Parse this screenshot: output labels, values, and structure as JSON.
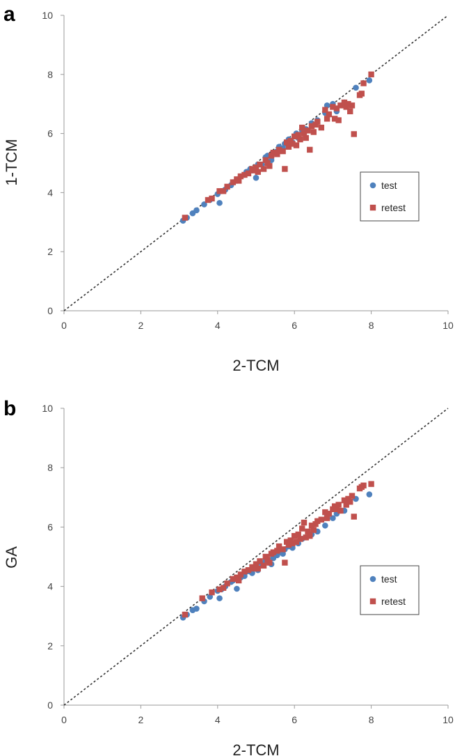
{
  "chart_data": [
    {
      "panel_label": "a",
      "type": "scatter",
      "xlabel": "2-TCM",
      "ylabel": "1-TCM",
      "xlim": [
        0,
        10
      ],
      "ylim": [
        0,
        10
      ],
      "xticks": [
        "0",
        "2",
        "4",
        "6",
        "8",
        "10"
      ],
      "yticks": [
        "0",
        "2",
        "4",
        "6",
        "8",
        "10"
      ],
      "identity_line": true,
      "grid": false,
      "legend_position": "right",
      "series": [
        {
          "name": "test",
          "marker": "circle",
          "color": "#4f81bd",
          "points": [
            [
              3.1,
              3.05
            ],
            [
              3.2,
              3.15
            ],
            [
              3.35,
              3.3
            ],
            [
              3.45,
              3.4
            ],
            [
              3.65,
              3.6
            ],
            [
              3.8,
              3.75
            ],
            [
              4.0,
              3.95
            ],
            [
              4.05,
              3.65
            ],
            [
              4.1,
              4.05
            ],
            [
              4.2,
              4.1
            ],
            [
              4.35,
              4.25
            ],
            [
              4.4,
              4.35
            ],
            [
              4.5,
              4.4
            ],
            [
              4.6,
              4.55
            ],
            [
              4.7,
              4.6
            ],
            [
              4.75,
              4.7
            ],
            [
              4.85,
              4.8
            ],
            [
              4.9,
              4.75
            ],
            [
              5.0,
              4.5
            ],
            [
              5.05,
              4.95
            ],
            [
              5.15,
              4.95
            ],
            [
              5.25,
              5.2
            ],
            [
              5.3,
              5.25
            ],
            [
              5.4,
              5.1
            ],
            [
              5.45,
              5.35
            ],
            [
              5.55,
              5.4
            ],
            [
              5.6,
              5.55
            ],
            [
              5.7,
              5.5
            ],
            [
              5.75,
              5.65
            ],
            [
              5.85,
              5.8
            ],
            [
              5.95,
              5.7
            ],
            [
              6.05,
              6.0
            ],
            [
              6.1,
              5.85
            ],
            [
              6.2,
              6.1
            ],
            [
              6.3,
              6.15
            ],
            [
              6.45,
              6.35
            ],
            [
              6.6,
              6.45
            ],
            [
              6.8,
              6.7
            ],
            [
              6.85,
              6.95
            ],
            [
              7.0,
              7.0
            ],
            [
              7.1,
              6.75
            ],
            [
              7.3,
              7.05
            ],
            [
              7.6,
              7.55
            ],
            [
              7.95,
              7.8
            ]
          ]
        },
        {
          "name": "retest",
          "marker": "square",
          "color": "#c0504d",
          "points": [
            [
              3.15,
              3.15
            ],
            [
              3.75,
              3.75
            ],
            [
              3.85,
              3.8
            ],
            [
              4.05,
              4.05
            ],
            [
              4.15,
              4.05
            ],
            [
              4.25,
              4.2
            ],
            [
              4.4,
              4.35
            ],
            [
              4.5,
              4.45
            ],
            [
              4.55,
              4.4
            ],
            [
              4.6,
              4.55
            ],
            [
              4.7,
              4.6
            ],
            [
              4.8,
              4.65
            ],
            [
              4.9,
              4.8
            ],
            [
              4.95,
              4.75
            ],
            [
              5.0,
              4.85
            ],
            [
              5.05,
              4.7
            ],
            [
              5.1,
              4.95
            ],
            [
              5.2,
              4.8
            ],
            [
              5.25,
              5.1
            ],
            [
              5.3,
              5.0
            ],
            [
              5.35,
              4.9
            ],
            [
              5.4,
              5.25
            ],
            [
              5.45,
              5.35
            ],
            [
              5.55,
              5.3
            ],
            [
              5.6,
              5.45
            ],
            [
              5.7,
              5.4
            ],
            [
              5.75,
              4.8
            ],
            [
              5.8,
              5.7
            ],
            [
              5.85,
              5.55
            ],
            [
              5.9,
              5.75
            ],
            [
              5.95,
              5.65
            ],
            [
              6.0,
              5.9
            ],
            [
              6.05,
              5.6
            ],
            [
              6.1,
              5.95
            ],
            [
              6.15,
              5.8
            ],
            [
              6.2,
              6.2
            ],
            [
              6.25,
              6.0
            ],
            [
              6.3,
              5.85
            ],
            [
              6.35,
              6.1
            ],
            [
              6.4,
              5.45
            ],
            [
              6.45,
              6.25
            ],
            [
              6.5,
              6.05
            ],
            [
              6.55,
              6.3
            ],
            [
              6.6,
              6.4
            ],
            [
              6.7,
              6.2
            ],
            [
              6.8,
              6.8
            ],
            [
              6.85,
              6.5
            ],
            [
              6.9,
              6.65
            ],
            [
              7.0,
              6.9
            ],
            [
              7.05,
              6.5
            ],
            [
              7.1,
              6.85
            ],
            [
              7.15,
              6.45
            ],
            [
              7.2,
              6.95
            ],
            [
              7.3,
              7.05
            ],
            [
              7.35,
              6.9
            ],
            [
              7.4,
              7.0
            ],
            [
              7.45,
              6.75
            ],
            [
              7.5,
              6.95
            ],
            [
              7.55,
              5.98
            ],
            [
              7.7,
              7.3
            ],
            [
              7.75,
              7.35
            ],
            [
              7.8,
              7.7
            ],
            [
              8.0,
              8.0
            ]
          ]
        }
      ]
    },
    {
      "panel_label": "b",
      "type": "scatter",
      "xlabel": "2-TCM",
      "ylabel": "GA",
      "xlim": [
        0,
        10
      ],
      "ylim": [
        0,
        10
      ],
      "xticks": [
        "0",
        "2",
        "4",
        "6",
        "8",
        "10"
      ],
      "yticks": [
        "0",
        "2",
        "4",
        "6",
        "8",
        "10"
      ],
      "identity_line": true,
      "grid": false,
      "legend_position": "right",
      "series": [
        {
          "name": "test",
          "marker": "circle",
          "color": "#4f81bd",
          "points": [
            [
              3.1,
              2.95
            ],
            [
              3.2,
              3.05
            ],
            [
              3.35,
              3.2
            ],
            [
              3.45,
              3.25
            ],
            [
              3.65,
              3.5
            ],
            [
              3.8,
              3.65
            ],
            [
              4.0,
              3.85
            ],
            [
              4.05,
              3.6
            ],
            [
              4.1,
              3.9
            ],
            [
              4.2,
              4.0
            ],
            [
              4.35,
              4.15
            ],
            [
              4.4,
              4.2
            ],
            [
              4.5,
              3.92
            ],
            [
              4.6,
              4.3
            ],
            [
              4.7,
              4.35
            ],
            [
              4.75,
              4.5
            ],
            [
              4.85,
              4.5
            ],
            [
              4.9,
              4.45
            ],
            [
              5.0,
              4.6
            ],
            [
              5.05,
              4.55
            ],
            [
              5.15,
              4.75
            ],
            [
              5.25,
              4.85
            ],
            [
              5.3,
              4.9
            ],
            [
              5.4,
              4.75
            ],
            [
              5.45,
              4.95
            ],
            [
              5.55,
              5.05
            ],
            [
              5.6,
              5.15
            ],
            [
              5.7,
              5.1
            ],
            [
              5.75,
              5.25
            ],
            [
              5.85,
              5.35
            ],
            [
              5.95,
              5.3
            ],
            [
              6.05,
              5.5
            ],
            [
              6.1,
              5.45
            ],
            [
              6.2,
              5.6
            ],
            [
              6.3,
              5.65
            ],
            [
              6.45,
              5.75
            ],
            [
              6.6,
              5.85
            ],
            [
              6.8,
              6.05
            ],
            [
              6.85,
              6.4
            ],
            [
              7.0,
              6.3
            ],
            [
              7.1,
              6.45
            ],
            [
              7.3,
              6.55
            ],
            [
              7.6,
              6.95
            ],
            [
              7.95,
              7.1
            ]
          ]
        },
        {
          "name": "retest",
          "marker": "square",
          "color": "#c0504d",
          "points": [
            [
              3.15,
              3.05
            ],
            [
              3.6,
              3.6
            ],
            [
              3.85,
              3.8
            ],
            [
              4.05,
              3.9
            ],
            [
              4.15,
              3.95
            ],
            [
              4.25,
              4.1
            ],
            [
              4.4,
              4.25
            ],
            [
              4.5,
              4.3
            ],
            [
              4.55,
              4.2
            ],
            [
              4.6,
              4.4
            ],
            [
              4.7,
              4.5
            ],
            [
              4.8,
              4.55
            ],
            [
              4.9,
              4.65
            ],
            [
              4.95,
              4.6
            ],
            [
              5.0,
              4.75
            ],
            [
              5.05,
              4.6
            ],
            [
              5.1,
              4.85
            ],
            [
              5.2,
              4.7
            ],
            [
              5.25,
              5.0
            ],
            [
              5.3,
              4.9
            ],
            [
              5.35,
              4.8
            ],
            [
              5.4,
              5.1
            ],
            [
              5.45,
              5.15
            ],
            [
              5.55,
              5.2
            ],
            [
              5.6,
              5.35
            ],
            [
              5.7,
              5.25
            ],
            [
              5.75,
              4.8
            ],
            [
              5.8,
              5.5
            ],
            [
              5.85,
              5.4
            ],
            [
              5.9,
              5.55
            ],
            [
              5.95,
              5.45
            ],
            [
              6.0,
              5.7
            ],
            [
              6.05,
              5.5
            ],
            [
              6.1,
              5.75
            ],
            [
              6.15,
              5.6
            ],
            [
              6.2,
              5.95
            ],
            [
              6.25,
              6.15
            ],
            [
              6.3,
              5.65
            ],
            [
              6.35,
              5.85
            ],
            [
              6.4,
              5.7
            ],
            [
              6.45,
              6.05
            ],
            [
              6.5,
              5.9
            ],
            [
              6.55,
              6.1
            ],
            [
              6.6,
              6.2
            ],
            [
              6.7,
              6.25
            ],
            [
              6.8,
              6.5
            ],
            [
              6.85,
              6.3
            ],
            [
              6.9,
              6.45
            ],
            [
              7.0,
              6.6
            ],
            [
              7.05,
              6.7
            ],
            [
              7.1,
              6.6
            ],
            [
              7.15,
              6.75
            ],
            [
              7.2,
              6.55
            ],
            [
              7.3,
              6.9
            ],
            [
              7.35,
              6.75
            ],
            [
              7.4,
              6.95
            ],
            [
              7.45,
              6.85
            ],
            [
              7.5,
              7.05
            ],
            [
              7.55,
              6.35
            ],
            [
              7.7,
              7.3
            ],
            [
              7.75,
              7.35
            ],
            [
              7.8,
              7.4
            ],
            [
              8.0,
              7.45
            ]
          ]
        }
      ]
    }
  ]
}
